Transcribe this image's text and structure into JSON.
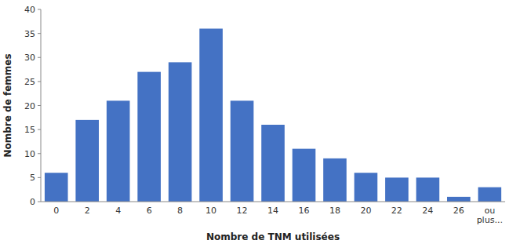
{
  "chart_data": {
    "type": "bar",
    "categories": [
      "0",
      "2",
      "4",
      "6",
      "8",
      "10",
      "12",
      "14",
      "16",
      "18",
      "20",
      "22",
      "24",
      "26",
      "ou\nplus..."
    ],
    "values": [
      6,
      17,
      21,
      27,
      29,
      36,
      21,
      16,
      11,
      9,
      6,
      5,
      5,
      1,
      3
    ],
    "color": "#4472C4",
    "xlabel": "Nombre de TNM utilisées",
    "ylabel": "Nombre de femmes",
    "ylim": [
      0,
      40
    ],
    "yticks": [
      0,
      5,
      10,
      15,
      20,
      25,
      30,
      35,
      40
    ],
    "grid": false
  }
}
